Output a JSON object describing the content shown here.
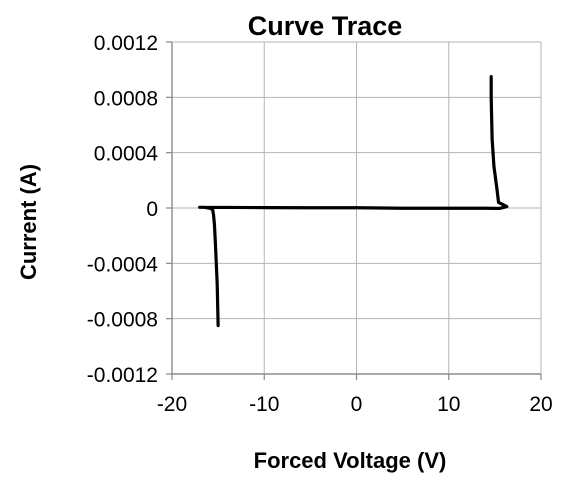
{
  "chart_data": {
    "type": "line",
    "title": "Curve Trace",
    "xlabel": "Forced Voltage (V)",
    "ylabel": "Current (A)",
    "xlim": [
      -20,
      20
    ],
    "ylim": [
      -0.0012,
      0.0012
    ],
    "x_ticks": [
      -20,
      -10,
      0,
      10,
      20
    ],
    "x_tick_labels": [
      "-20",
      "-10",
      "0",
      "10",
      "20"
    ],
    "y_ticks": [
      0.0012,
      0.0008,
      0.0004,
      0,
      -0.0004,
      -0.0008,
      -0.0012
    ],
    "y_tick_labels": [
      "0.0012",
      "0.0008",
      "0.0004",
      "0",
      "-0.0004",
      "-0.0008",
      "-0.0012"
    ],
    "grid": true,
    "legend": "none",
    "series": [
      {
        "color": "#000000",
        "x": [
          -15.0,
          -15.05,
          -15.1,
          -15.2,
          -15.3,
          -15.4,
          -15.5,
          -15.6,
          -16.0,
          -16.5,
          -17.0,
          -16.5,
          -10,
          -5,
          0,
          5,
          10,
          14,
          15,
          15.5,
          16.0,
          16.3,
          16.0,
          15.4,
          15.2,
          14.9,
          14.7,
          14.6,
          14.6
        ],
        "y": [
          -0.00085,
          -0.0007,
          -0.00055,
          -0.0004,
          -0.00025,
          -0.00012,
          -5e-05,
          -1e-05,
          0.0,
          5e-06,
          5e-06,
          5e-06,
          3e-06,
          2e-06,
          2e-06,
          -2e-06,
          -2e-06,
          -2e-06,
          -3e-06,
          -3e-06,
          5e-06,
          1e-05,
          2e-05,
          4e-05,
          0.00015,
          0.0003,
          0.0005,
          0.0008,
          0.00095
        ]
      }
    ]
  }
}
